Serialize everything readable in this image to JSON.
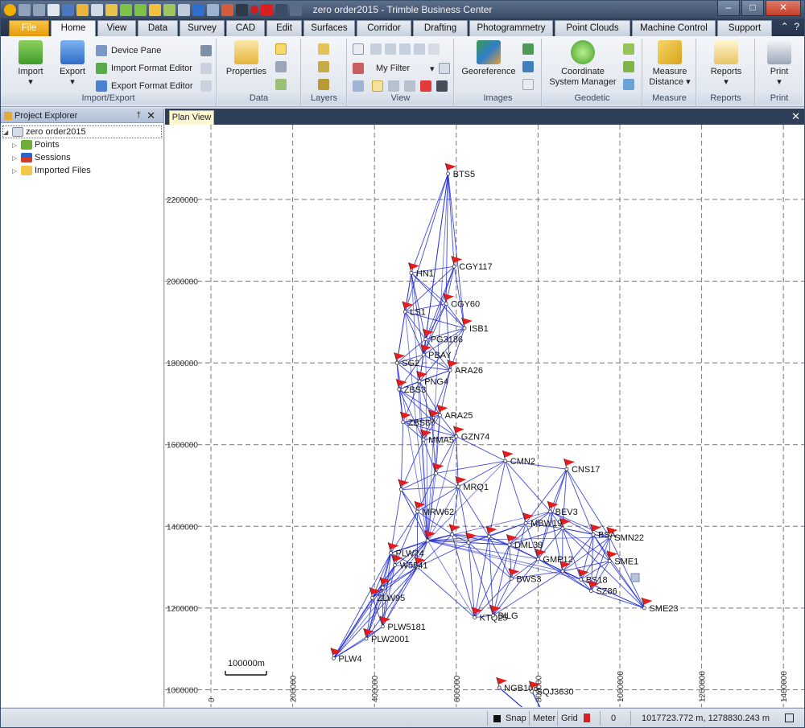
{
  "window": {
    "title": "zero order2015 - Trimble Business Center",
    "minimize": "–",
    "maximize": "□",
    "close": "✕"
  },
  "ribbon_tabs": [
    "File",
    "Home",
    "View",
    "Data",
    "Survey",
    "CAD",
    "Edit",
    "Surfaces",
    "Corridor",
    "Drafting",
    "Photogrammetry",
    "Point Clouds",
    "Machine Control",
    "Support"
  ],
  "active_tab": "Home",
  "ribbon": {
    "import_export": {
      "label": "Import/Export",
      "import": "Import",
      "export": "Export",
      "device_pane": "Device Pane",
      "import_format_editor": "Import Format Editor",
      "export_format_editor": "Export Format Editor"
    },
    "data": {
      "label": "Data",
      "properties": "Properties"
    },
    "layers": {
      "label": "Layers"
    },
    "view": {
      "label": "View",
      "filter_value": "My Filter"
    },
    "images": {
      "label": "Images",
      "georeference": "Georeference"
    },
    "geodetic": {
      "label": "Geodetic",
      "coordinate_system_manager_1": "Coordinate",
      "coordinate_system_manager_2": "System Manager"
    },
    "measure": {
      "label": "Measure",
      "measure_distance_1": "Measure",
      "measure_distance_2": "Distance ▾"
    },
    "reports": {
      "label": "Reports",
      "reports": "Reports"
    },
    "print": {
      "label": "Print",
      "print": "Print"
    }
  },
  "project_explorer": {
    "title": "Project Explorer",
    "pin": "†",
    "close": "✕",
    "root": "zero order2015",
    "items": [
      "Points",
      "Sessions",
      "Imported Files"
    ]
  },
  "document": {
    "tab": "Plan View",
    "close": "✕"
  },
  "plan_view": {
    "y_ticks": [
      "2200000",
      "2000000",
      "1800000",
      "1600000",
      "1400000",
      "1200000",
      "1000000"
    ],
    "x_ticks": [
      "0",
      "200000",
      "400000",
      "600000",
      "800000",
      "1000000",
      "1200000",
      "1400000"
    ],
    "scale_bar": "100000m",
    "line_color": "#1f2bd0",
    "flag_color": "#e81c1c",
    "points": [
      {
        "name": "BTS5",
        "x": 580000,
        "y": 2263000
      },
      {
        "name": "CGY117",
        "x": 595000,
        "y": 2036000
      },
      {
        "name": "HN1",
        "x": 490000,
        "y": 2020000
      },
      {
        "name": "CGY60",
        "x": 575000,
        "y": 1945000
      },
      {
        "name": "LS1",
        "x": 475000,
        "y": 1925000
      },
      {
        "name": "ISB1",
        "x": 620000,
        "y": 1885000
      },
      {
        "name": "PG3186",
        "x": 525000,
        "y": 1858000
      },
      {
        "name": "PBAY",
        "x": 520000,
        "y": 1820000
      },
      {
        "name": "SG2",
        "x": 455000,
        "y": 1800000
      },
      {
        "name": "ARA26",
        "x": 585000,
        "y": 1782000
      },
      {
        "name": "PNG4",
        "x": 510000,
        "y": 1755000
      },
      {
        "name": "ZBS3",
        "x": 460000,
        "y": 1735000
      },
      {
        "name": "ARA25",
        "x": 560000,
        "y": 1672000
      },
      {
        "name": "ZBS87",
        "x": 470000,
        "y": 1655000
      },
      {
        "name": "GZN74",
        "x": 600000,
        "y": 1620000
      },
      {
        "name": "MMA5",
        "x": 520000,
        "y": 1612000
      },
      {
        "name": "CMN2",
        "x": 720000,
        "y": 1560000
      },
      {
        "name": "CNS17",
        "x": 870000,
        "y": 1540000
      },
      {
        "name": "MRQ1",
        "x": 605000,
        "y": 1497000
      },
      {
        "name": "MRW62",
        "x": 505000,
        "y": 1436000
      },
      {
        "name": "BEV3",
        "x": 830000,
        "y": 1436000
      },
      {
        "name": "MBW19",
        "x": 770000,
        "y": 1408000
      },
      {
        "name": "SMN22",
        "x": 975000,
        "y": 1373000
      },
      {
        "name": "BSA",
        "x": 935000,
        "y": 1380000
      },
      {
        "name": "DML39",
        "x": 730000,
        "y": 1355000
      },
      {
        "name": "PLW24",
        "x": 440000,
        "y": 1335000
      },
      {
        "name": "W5541",
        "x": 450000,
        "y": 1305000
      },
      {
        "name": "SME1",
        "x": 975000,
        "y": 1315000
      },
      {
        "name": "GMP12",
        "x": 800000,
        "y": 1320000
      },
      {
        "name": "BWS3",
        "x": 735000,
        "y": 1272000
      },
      {
        "name": "BS18",
        "x": 905000,
        "y": 1270000
      },
      {
        "name": "SZ86",
        "x": 930000,
        "y": 1242000
      },
      {
        "name": "ZLW95",
        "x": 395000,
        "y": 1225000
      },
      {
        "name": "SME23",
        "x": 1060000,
        "y": 1200000
      },
      {
        "name": "KTQ25",
        "x": 645000,
        "y": 1177000
      },
      {
        "name": "BILG",
        "x": 690000,
        "y": 1182000
      },
      {
        "name": "PLW5181",
        "x": 420000,
        "y": 1155000
      },
      {
        "name": "PLW2001",
        "x": 380000,
        "y": 1125000
      },
      {
        "name": "PLW4",
        "x": 300000,
        "y": 1077000
      },
      {
        "name": "NGB108",
        "x": 705000,
        "y": 1005000
      },
      {
        "name": "SQJ3630",
        "x": 785000,
        "y": 996000
      }
    ],
    "hub_points": [
      {
        "x": 530000,
        "y": 1365000
      },
      {
        "x": 590000,
        "y": 1380000
      },
      {
        "x": 630000,
        "y": 1360000
      },
      {
        "x": 680000,
        "y": 1375000
      },
      {
        "x": 860000,
        "y": 1395000
      },
      {
        "x": 860000,
        "y": 1290000
      },
      {
        "x": 540000,
        "y": 1660000
      },
      {
        "x": 550000,
        "y": 1530000
      },
      {
        "x": 505000,
        "y": 1300000
      },
      {
        "x": 465000,
        "y": 1490000
      },
      {
        "x": 420000,
        "y": 1250000
      }
    ]
  },
  "statusbar": {
    "snap": "Snap",
    "meter": "Meter",
    "grid": "Grid",
    "count": "0",
    "coords": "1017723.772 m, 1278830.243 m"
  }
}
